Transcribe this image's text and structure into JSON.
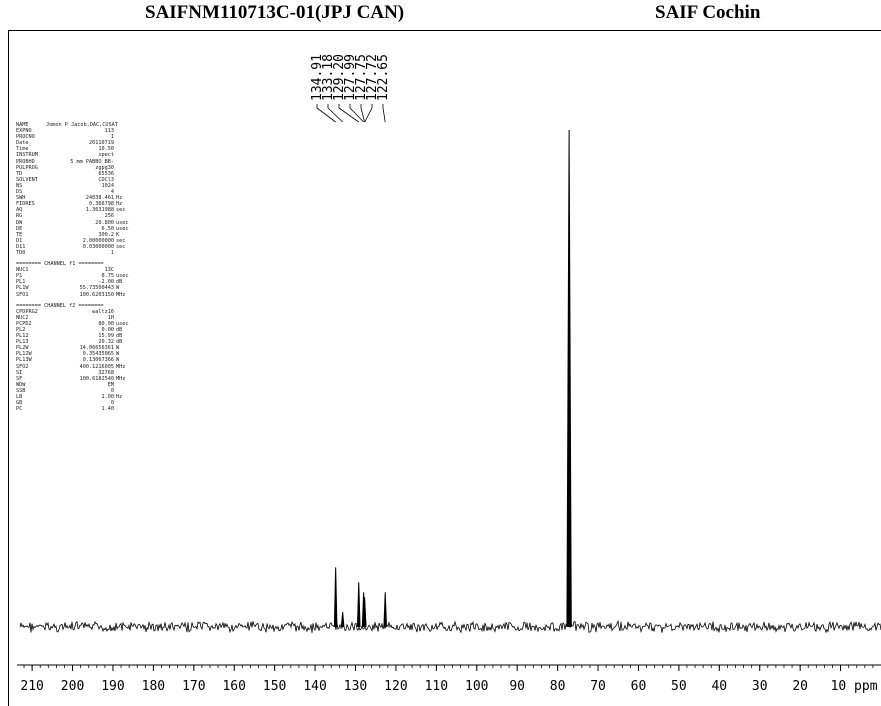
{
  "header": {
    "title_left": "SAIFNM110713C-01(JPJ CAN)",
    "title_right": "SAIF Cochin"
  },
  "params_acq": [
    [
      "NAME",
      "Jomon P Jacob,DAC,CUSAT",
      ""
    ],
    [
      "EXPNO",
      "113",
      ""
    ],
    [
      "PROCNO",
      "1",
      ""
    ],
    [
      "Date_",
      "20110719",
      ""
    ],
    [
      "Time",
      "10.50",
      ""
    ],
    [
      "INSTRUM",
      "spect",
      ""
    ],
    [
      "PROBHD",
      "5 mm PABBO BB-",
      ""
    ],
    [
      "PULPROG",
      "zgpg30",
      ""
    ],
    [
      "TD",
      "65536",
      ""
    ],
    [
      "SOLVENT",
      "CDCl3",
      ""
    ],
    [
      "NS",
      "1024",
      ""
    ],
    [
      "DS",
      "4",
      ""
    ],
    [
      "SWH",
      "24038.461",
      "Hz"
    ],
    [
      "FIDRES",
      "0.366798",
      "Hz"
    ],
    [
      "AQ",
      "1.3631988",
      "sec"
    ],
    [
      "RG",
      "256",
      ""
    ],
    [
      "DW",
      "20.800",
      "usec"
    ],
    [
      "DE",
      "6.50",
      "usec"
    ],
    [
      "TE",
      "300.2",
      "K"
    ],
    [
      "D1",
      "2.00000000",
      "sec"
    ],
    [
      "D11",
      "0.03000000",
      "sec"
    ],
    [
      "TD0",
      "1",
      ""
    ]
  ],
  "params_f1_header": "======== CHANNEL f1 ========",
  "params_f1": [
    [
      "NUC1",
      "13C",
      ""
    ],
    [
      "P1",
      "8.75",
      "usec"
    ],
    [
      "PL1",
      "-2.00",
      "dB"
    ],
    [
      "PL1W",
      "55.73500443",
      "W"
    ],
    [
      "SFO1",
      "100.6203150",
      "MHz"
    ]
  ],
  "params_f2_header": "======== CHANNEL f2 ========",
  "params_f2": [
    [
      "CPDPRG2",
      "waltz16",
      ""
    ],
    [
      "NUC2",
      "1H",
      ""
    ],
    [
      "PCPD2",
      "80.00",
      "usec"
    ],
    [
      "PL2",
      "0.00",
      "dB"
    ],
    [
      "PL12",
      "15.99",
      "dB"
    ],
    [
      "PL13",
      "20.32",
      "dB"
    ],
    [
      "PL2W",
      "14.06656361",
      "W"
    ],
    [
      "PL12W",
      "0.35435065",
      "W"
    ],
    [
      "PL13W",
      "0.13067366",
      "W"
    ],
    [
      "SFO2",
      "400.1216005",
      "MHz"
    ],
    [
      "SI",
      "32768",
      ""
    ],
    [
      "SF",
      "100.6182540",
      "MHz"
    ],
    [
      "WDW",
      "EM",
      ""
    ],
    [
      "SSB",
      "0",
      ""
    ],
    [
      "LB",
      "1.00",
      "Hz"
    ],
    [
      "GB",
      "0",
      ""
    ],
    [
      "PC",
      "1.40",
      ""
    ]
  ],
  "chart_data": {
    "type": "line",
    "title": "SAIFNM110713C-01(JPJ CAN)",
    "xlabel": "ppm",
    "xlim": [
      213,
      0
    ],
    "x_ticks": [
      210,
      200,
      190,
      180,
      170,
      160,
      150,
      140,
      130,
      120,
      110,
      100,
      90,
      80,
      70,
      60,
      50,
      40,
      30,
      20,
      10
    ],
    "x_tick_labels": [
      "210",
      "200",
      "190",
      "180",
      "170",
      "160",
      "150",
      "140",
      "130",
      "120",
      "110",
      "100",
      "90",
      "80",
      "70",
      "60",
      "50",
      "40",
      "30",
      "20",
      "10 ppm"
    ],
    "peak_labels": [
      "134.91",
      "133.18",
      "129.20",
      "127.99",
      "127.75",
      "127.72",
      "122.65"
    ],
    "peaks": [
      {
        "ppm": 134.91,
        "intensity": 0.12
      },
      {
        "ppm": 133.18,
        "intensity": 0.03
      },
      {
        "ppm": 129.2,
        "intensity": 0.09
      },
      {
        "ppm": 127.99,
        "intensity": 0.07
      },
      {
        "ppm": 127.75,
        "intensity": 0.06
      },
      {
        "ppm": 127.72,
        "intensity": 0.05
      },
      {
        "ppm": 122.65,
        "intensity": 0.07
      },
      {
        "ppm": 77.16,
        "intensity": 1.0
      }
    ],
    "grid": false
  }
}
